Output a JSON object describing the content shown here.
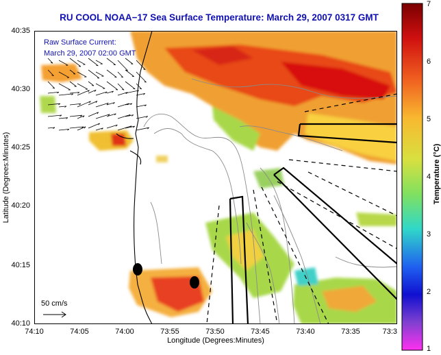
{
  "title": "RU COOL  NOAA−17  Sea Surface Temperature:  March 29, 2007 0317 GMT",
  "current_label": {
    "line1": "Raw Surface Current:",
    "line2": "March 29, 2007 02:00 GMT"
  },
  "scale_label": "50 cm/s",
  "axes": {
    "xlabel": "Longitude (Degrees:Minutes)",
    "ylabel": "Latitude (Degrees:Minutes)",
    "xticks": [
      "74:10",
      "74:05",
      "74:00",
      "73:55",
      "73:50",
      "73:45",
      "73:40",
      "73:35",
      "73:3"
    ],
    "yticks": [
      "40:35",
      "40:30",
      "40:25",
      "40:20",
      "40:15",
      "40:10"
    ]
  },
  "colorbar": {
    "title": "Temperature (°C)",
    "ticks": [
      "7",
      "6",
      "5",
      "4",
      "3",
      "2",
      "1"
    ],
    "min": 1,
    "max": 7
  },
  "colors": {
    "title": "#1010b0",
    "land": "#ffffff",
    "outline": "#000000",
    "contour": "#8a8a8a"
  }
}
